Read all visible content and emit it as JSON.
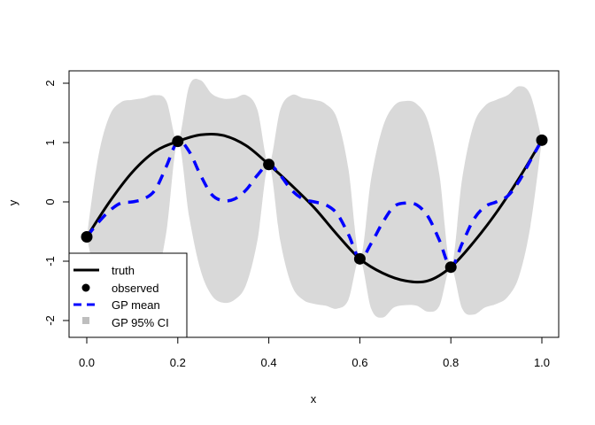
{
  "chart_data": {
    "type": "line",
    "title": "",
    "xlabel": "x",
    "ylabel": "y",
    "xlim": [
      0,
      1
    ],
    "ylim": [
      -2,
      2
    ],
    "grid": false,
    "legend_position": "bottom-left",
    "x_ticks": [
      "0.0",
      "0.2",
      "0.4",
      "0.6",
      "0.8",
      "1.0"
    ],
    "y_ticks": [
      "-2",
      "-1",
      "0",
      "1",
      "2"
    ],
    "colors": {
      "truth": "#000000",
      "observed": "#000000",
      "gp_mean": "#0000ff",
      "ci": "#d9d9d9",
      "ci_legend": "#bebebe"
    },
    "legend": [
      "truth",
      "observed",
      "GP mean",
      "GP 95% CI"
    ],
    "observed": {
      "x": [
        0,
        0.2,
        0.4,
        0.6,
        0.8,
        1.0
      ],
      "y": [
        -0.59,
        1.02,
        0.63,
        -0.96,
        -1.1,
        1.04
      ]
    },
    "truth": {
      "x": [
        0,
        0.05,
        0.1,
        0.15,
        0.2,
        0.25,
        0.3,
        0.35,
        0.4,
        0.45,
        0.5,
        0.55,
        0.6,
        0.65,
        0.7,
        0.75,
        0.8,
        0.85,
        0.9,
        0.95,
        1.0
      ],
      "y": [
        -0.59,
        0.0,
        0.5,
        0.85,
        1.02,
        1.13,
        1.12,
        0.95,
        0.63,
        0.28,
        -0.1,
        -0.55,
        -0.96,
        -1.2,
        -1.33,
        -1.33,
        -1.1,
        -0.68,
        -0.18,
        0.4,
        1.04
      ]
    },
    "gp": {
      "x": [
        0,
        0.025,
        0.05,
        0.075,
        0.1,
        0.125,
        0.15,
        0.175,
        0.2,
        0.225,
        0.25,
        0.275,
        0.3,
        0.325,
        0.35,
        0.375,
        0.4,
        0.425,
        0.45,
        0.475,
        0.5,
        0.525,
        0.55,
        0.575,
        0.6,
        0.625,
        0.65,
        0.675,
        0.7,
        0.725,
        0.75,
        0.775,
        0.8,
        0.825,
        0.85,
        0.875,
        0.9,
        0.925,
        0.95,
        0.975,
        1.0
      ],
      "mean": [
        -0.59,
        -0.35,
        -0.15,
        -0.02,
        0.0,
        0.05,
        0.2,
        0.6,
        1.02,
        0.85,
        0.45,
        0.12,
        0.02,
        0.05,
        0.2,
        0.45,
        0.63,
        0.45,
        0.2,
        0.05,
        0.0,
        -0.05,
        -0.2,
        -0.55,
        -0.96,
        -0.7,
        -0.35,
        -0.08,
        -0.02,
        -0.05,
        -0.25,
        -0.65,
        -1.1,
        -0.7,
        -0.3,
        -0.08,
        0.0,
        0.1,
        0.35,
        0.7,
        1.04
      ],
      "upper": [
        -0.59,
        0.75,
        1.45,
        1.68,
        1.72,
        1.75,
        1.8,
        1.7,
        1.02,
        1.95,
        2.05,
        1.82,
        1.74,
        1.75,
        1.8,
        1.55,
        0.63,
        1.55,
        1.8,
        1.75,
        1.72,
        1.65,
        1.4,
        0.55,
        -0.96,
        0.4,
        1.25,
        1.62,
        1.7,
        1.65,
        1.35,
        0.45,
        -1.1,
        0.4,
        1.3,
        1.62,
        1.72,
        1.8,
        1.95,
        1.8,
        1.04
      ],
      "lower": [
        -0.59,
        -1.45,
        -1.75,
        -1.72,
        -1.72,
        -1.65,
        -1.4,
        -0.5,
        1.02,
        -0.25,
        -1.15,
        -1.58,
        -1.7,
        -1.65,
        -1.4,
        -0.65,
        0.63,
        -0.65,
        -1.4,
        -1.65,
        -1.72,
        -1.75,
        -1.8,
        -1.65,
        -0.96,
        -1.8,
        -1.95,
        -1.78,
        -1.74,
        -1.75,
        -1.85,
        -1.75,
        -1.1,
        -1.8,
        -1.9,
        -1.78,
        -1.72,
        -1.6,
        -1.25,
        -0.4,
        1.04
      ]
    }
  }
}
